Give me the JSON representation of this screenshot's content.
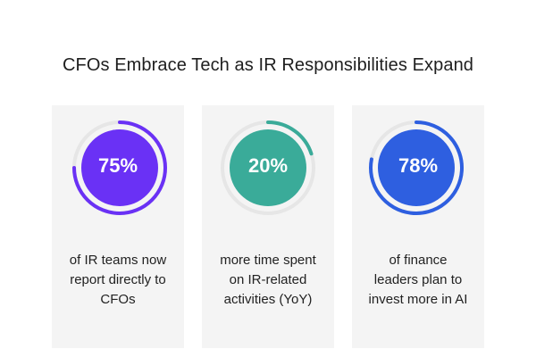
{
  "title": "CFOs Embrace Tech as IR Responsibilities Expand",
  "chart_data": {
    "type": "donut-stat",
    "title": "CFOs Embrace Tech as IR Responsibilities Expand",
    "items": [
      {
        "value": 75,
        "label": "75%",
        "description_lines": [
          "of IR teams now",
          "report directly to",
          "CFOs"
        ],
        "color": "#6a31f5"
      },
      {
        "value": 20,
        "label": "20%",
        "description_lines": [
          "more time spent",
          "on IR-related",
          "activities (YoY)"
        ],
        "color": "#3aab99"
      },
      {
        "value": 78,
        "label": "78%",
        "description_lines": [
          "of finance",
          "leaders plan to",
          "invest more in AI"
        ],
        "color": "#2e5fe0"
      }
    ]
  },
  "colors": {
    "track": "#e6e6e6",
    "card_bg": "#f4f4f4",
    "text": "#222222"
  }
}
